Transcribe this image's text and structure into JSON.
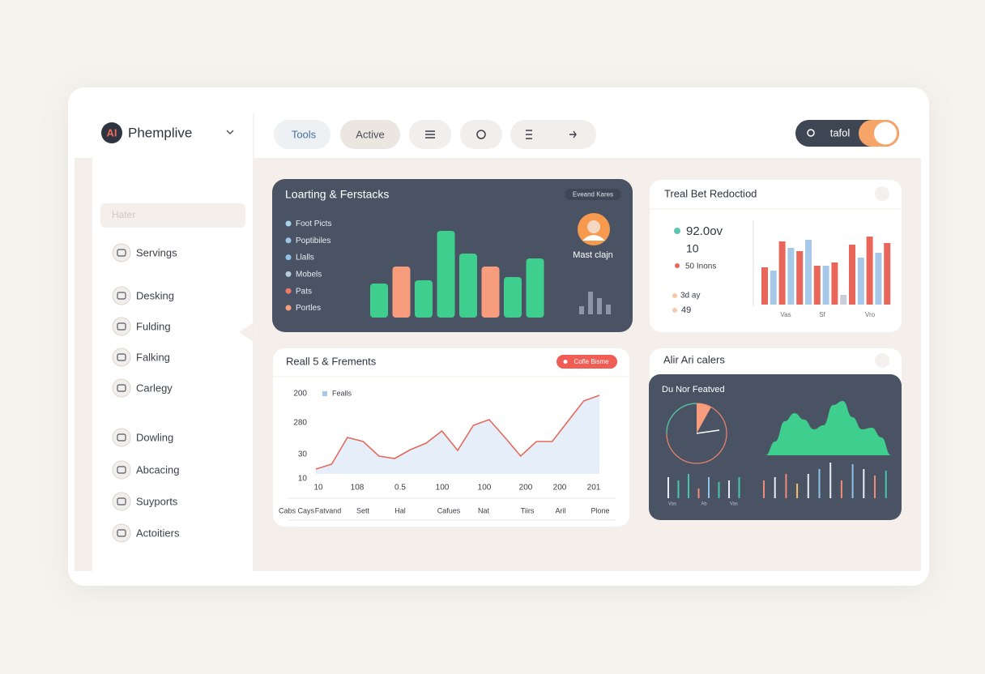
{
  "brand": {
    "logo": "AI",
    "name": "Phemplive"
  },
  "toolbar": {
    "tabs": [
      "Tools",
      "Active"
    ],
    "account": "tafol"
  },
  "sidebar": {
    "search": "Hater",
    "items": [
      "Servings",
      "Desking",
      "Fulding",
      "Falking",
      "Carlegy",
      "Dowling",
      "Abcacing",
      "Suyports",
      "Actoitiers"
    ]
  },
  "loading_card": {
    "title": "Loarting & Ferstacks",
    "badge": "Eveand Kares",
    "legend": [
      {
        "name": "Foot Picts",
        "color": "#a9d3ec"
      },
      {
        "name": "Poptibiles",
        "color": "#9fc6e4"
      },
      {
        "name": "Llalls",
        "color": "#8fc3e8"
      },
      {
        "name": "Mobels",
        "color": "#b8c9d8"
      },
      {
        "name": "Pats",
        "color": "#f0796b"
      },
      {
        "name": "Portles",
        "color": "#f7a07e"
      }
    ],
    "values": [
      42,
      63,
      46,
      107,
      79,
      63,
      50,
      73
    ],
    "colors": [
      "#3ecf8e",
      "#f79d7e",
      "#3ecf8e",
      "#3ecf8e",
      "#3ecf8e",
      "#f79d7e",
      "#3ecf8e",
      "#3ecf8e"
    ],
    "profile": "Mast clajn",
    "mini_values": [
      10,
      28,
      20,
      12
    ]
  },
  "reduction_card": {
    "title": "Treal Bet Redoctiod",
    "stats": [
      "92.0ov",
      "10",
      "50 Inons",
      "3d ay",
      "49"
    ],
    "values": [
      46,
      42,
      78,
      70,
      66,
      80,
      48,
      48,
      52,
      12,
      74,
      58,
      84,
      64,
      76
    ],
    "colors": [
      "#e8675a",
      "#a7c8e8",
      "#e8675a",
      "#a7c8e8",
      "#e8675a",
      "#a7c8e8",
      "#e8675a",
      "#a7c8e8",
      "#e8675a",
      "#c9ced6",
      "#e8675a",
      "#a7c8e8",
      "#e8675a",
      "#a7c8e8",
      "#e8675a"
    ],
    "x_labels": [
      "Vas",
      "Sf",
      "Vro"
    ]
  },
  "line_card": {
    "title": "Reall 5 & Frements",
    "badge": "Cofle Bisme",
    "legend": "Fealls",
    "y_labels": [
      "200",
      "280",
      "30",
      "10"
    ],
    "values": [
      6,
      12,
      45,
      40,
      22,
      19,
      30,
      38,
      53,
      29,
      60,
      67,
      45,
      22,
      40,
      40,
      65,
      90,
      97
    ],
    "ylim": [
      0,
      100
    ],
    "x_labels": [
      "10",
      "108",
      "0.5",
      "100",
      "100",
      "200",
      "200",
      "201"
    ],
    "footer": [
      "Cabs Cays",
      "Fatvand",
      "Sett",
      "Hal",
      "Cafues",
      "Nat",
      "Tiirs",
      "Aril",
      "Plone"
    ]
  },
  "feature_card": {
    "title": "Alir Ari calers",
    "subtitle": "Du Nor Featved",
    "pie_value": 8,
    "area_values": [
      0,
      17,
      42,
      52,
      44,
      32,
      37,
      62,
      67,
      47,
      32,
      34,
      22,
      0
    ],
    "spikes": [
      26,
      22,
      30,
      12,
      26,
      20,
      22,
      26,
      22,
      26,
      30,
      18,
      30,
      36,
      44,
      22,
      42,
      36,
      28,
      34
    ],
    "spike_colors": [
      "#e8eef5",
      "#46c7a8",
      "#46c7a8",
      "#f08a7a",
      "#8fc3e8",
      "#46c7a8",
      "#e8eef5",
      "#46c7a8",
      "#f08a7a",
      "#e8eef5",
      "#f08a7a",
      "#f2c46b",
      "#e8eef5",
      "#8fc3e8",
      "#e8eef5",
      "#f08a7a",
      "#8fc3e8",
      "#e8eef5",
      "#f08a7a",
      "#46c7a8"
    ],
    "labels": [
      "Vas",
      "Ab",
      "Vas"
    ]
  }
}
